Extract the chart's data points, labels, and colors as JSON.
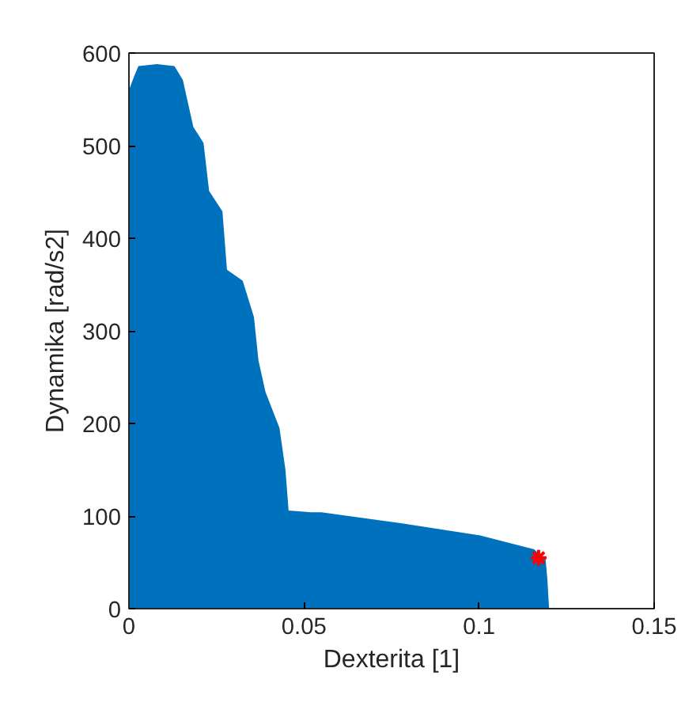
{
  "chart_data": {
    "type": "area",
    "xlabel": "Dexterita [1]",
    "ylabel": "Dynamika [rad/s2]",
    "xlim": [
      0,
      0.15
    ],
    "xticks": [
      0,
      0.05,
      0.1,
      0.15
    ],
    "ylim": [
      0,
      600
    ],
    "yticks": [
      0,
      100,
      200,
      300,
      400,
      500,
      600
    ],
    "grid": false,
    "series": [
      {
        "color": "#0072bd",
        "x": [
          0,
          0.0015,
          0.0027,
          0.008,
          0.013,
          0.0154,
          0.0184,
          0.0213,
          0.0229,
          0.0267,
          0.028,
          0.0325,
          0.0357,
          0.037,
          0.039,
          0.043,
          0.0447,
          0.0456,
          0.052,
          0.055,
          0.078,
          0.1003,
          0.1157,
          0.119,
          0.1195,
          0.12
        ],
        "values": [
          560,
          575,
          586,
          588,
          586,
          571,
          520,
          503,
          451,
          429,
          366,
          354,
          315,
          268,
          234,
          195,
          150,
          106,
          104,
          104,
          92,
          79,
          64,
          53,
          32,
          0
        ]
      },
      {
        "type": "scatter",
        "color": "#ff0000",
        "marker": "cross",
        "x": [
          0.117
        ],
        "values": [
          55
        ]
      }
    ]
  }
}
